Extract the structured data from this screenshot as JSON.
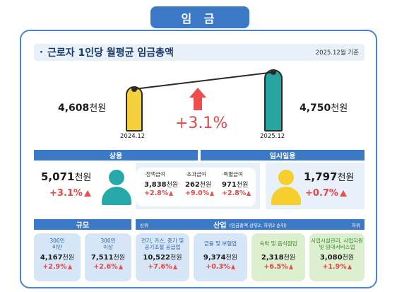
{
  "page_title": "임 금",
  "headline": {
    "bullet": "·",
    "text": "근로자 1인당 월평균 임금총액",
    "date": "2025.12월 기준"
  },
  "total": {
    "prev": {
      "value": "4,608",
      "unit": "천원",
      "year": "2024.12"
    },
    "curr": {
      "value": "4,750",
      "unit": "천원",
      "year": "2025.12"
    },
    "change": "+3.1%"
  },
  "regular": {
    "label": "상용",
    "value": "5,071",
    "unit": "천원",
    "change": "+3.1%",
    "items": [
      {
        "label": "·정액급여",
        "value": "3,838",
        "unit": "천원",
        "change": "+2.8%"
      },
      {
        "label": "·초과급여",
        "value": "262",
        "unit": "천원",
        "change": "+9.0%"
      },
      {
        "label": "·특별급여",
        "value": "971",
        "unit": "천원",
        "change": "+2.8%"
      }
    ]
  },
  "temporary": {
    "label": "임시일용",
    "value": "1,797",
    "unit": "천원",
    "change": "+0.7%"
  },
  "scale": {
    "label": "규모",
    "cards": [
      {
        "label_1": "300인",
        "label_2": "미만",
        "value": "4,167",
        "unit": "천원",
        "change": "+2.9%"
      },
      {
        "label_1": "300인",
        "label_2": "이상",
        "value": "7,511",
        "unit": "천원",
        "change": "+2.6%"
      }
    ]
  },
  "industry": {
    "label": "산업",
    "note": "(임금총액 상위2, 하위2 순위)",
    "left_tag": "상위",
    "right_tag": "하위",
    "cards": [
      {
        "label_1": "전기, 가스, 증기 및",
        "label_2": "공기조절 공급업",
        "value": "10,522",
        "unit": "천원",
        "change": "+7.6%",
        "tone": "blue"
      },
      {
        "label_1": "금융 및 보험업",
        "label_2": "",
        "value": "9,374",
        "unit": "천원",
        "change": "+0.3%",
        "tone": "blue"
      },
      {
        "label_1": "숙박 및 음식점업",
        "label_2": "",
        "value": "2,318",
        "unit": "천원",
        "change": "+6.5%",
        "tone": "green"
      },
      {
        "label_1": "사업시설관리, 사업지원",
        "label_2": "및 임대서비스업",
        "value": "3,080",
        "unit": "천원",
        "change": "+1.9%",
        "tone": "green"
      }
    ]
  },
  "colors": {
    "accent": "#3b78c6",
    "up": "#e84646",
    "teal": "#27a3a0",
    "yellow": "#f4d13a"
  }
}
